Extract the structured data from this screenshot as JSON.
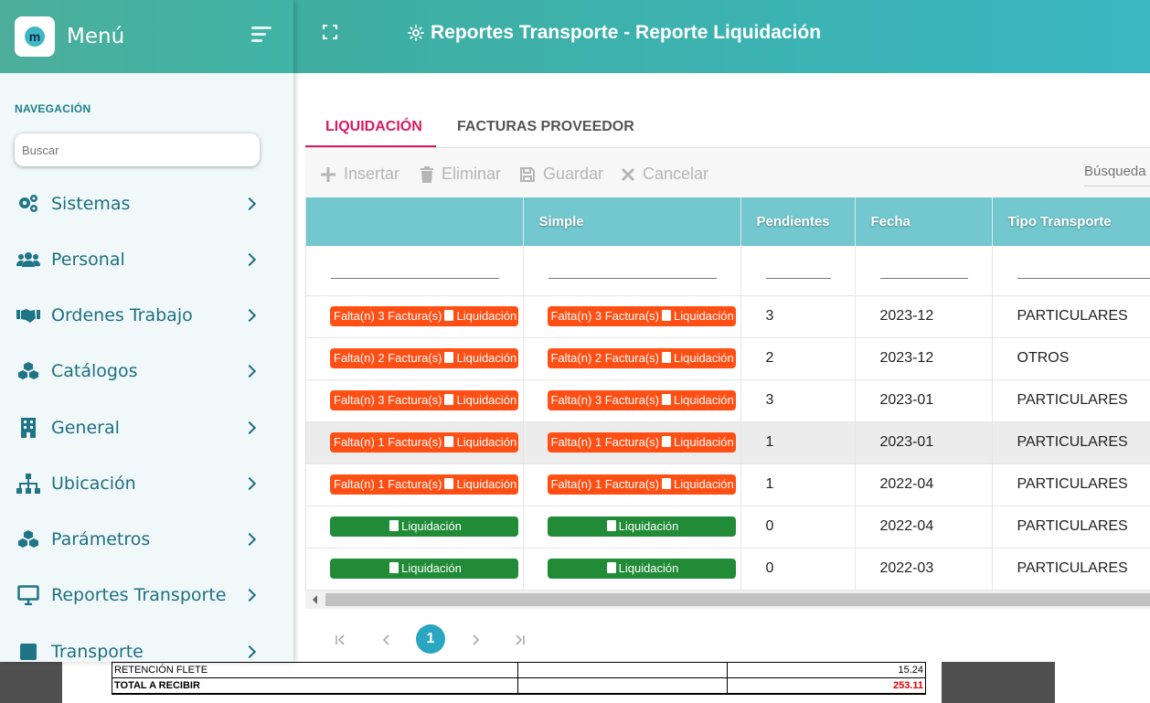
{
  "sidebar": {
    "title": "Menú",
    "logo_letter": "m",
    "nav_label": "NAVEGACIÓN",
    "search_placeholder": "Buscar",
    "items": [
      {
        "label": "Sistemas",
        "icon": "gears-icon"
      },
      {
        "label": "Personal",
        "icon": "users-icon"
      },
      {
        "label": "Ordenes Trabajo",
        "icon": "handshake-icon"
      },
      {
        "label": "Catálogos",
        "icon": "cubes-icon"
      },
      {
        "label": "General",
        "icon": "building-icon"
      },
      {
        "label": "Ubicación",
        "icon": "sitemap-icon"
      },
      {
        "label": "Parámetros",
        "icon": "cubes-icon"
      },
      {
        "label": "Reportes Transporte",
        "icon": "monitor-icon"
      },
      {
        "label": "Transporte",
        "icon": "square-icon"
      }
    ]
  },
  "header": {
    "title": "Reportes Transporte - Reporte Liquidación"
  },
  "tabs": [
    {
      "label": "LIQUIDACIÓN",
      "active": true
    },
    {
      "label": "FACTURAS PROVEEDOR",
      "active": false
    }
  ],
  "toolbar": {
    "insert": "Insertar",
    "delete": "Eliminar",
    "save": "Guardar",
    "cancel": "Cancelar",
    "search_placeholder": "Búsqueda"
  },
  "grid": {
    "columns": [
      "",
      "Simple",
      "Pendientes",
      "Fecha",
      "Tipo Transporte"
    ],
    "rows": [
      {
        "col1": "Falta(n) 3 Factura(s)",
        "col2": "Falta(n) 3 Factura(s)",
        "doc": "Liquidación",
        "status": "red",
        "pendientes": "3",
        "fecha": "2023-12",
        "tipo": "PARTICULARES"
      },
      {
        "col1": "Falta(n) 2 Factura(s)",
        "col2": "Falta(n) 2 Factura(s)",
        "doc": "Liquidación",
        "status": "red",
        "pendientes": "2",
        "fecha": "2023-12",
        "tipo": "OTROS"
      },
      {
        "col1": "Falta(n) 3 Factura(s)",
        "col2": "Falta(n) 3 Factura(s)",
        "doc": "Liquidación",
        "status": "red",
        "pendientes": "3",
        "fecha": "2023-01",
        "tipo": "PARTICULARES"
      },
      {
        "col1": "Falta(n) 1 Factura(s)",
        "col2": "Falta(n) 1 Factura(s)",
        "doc": "Liquidación",
        "status": "red",
        "pendientes": "1",
        "fecha": "2023-01",
        "tipo": "PARTICULARES",
        "selected": true
      },
      {
        "col1": "Falta(n) 1 Factura(s)",
        "col2": "Falta(n) 1 Factura(s)",
        "doc": "Liquidación",
        "status": "red",
        "pendientes": "1",
        "fecha": "2022-04",
        "tipo": "PARTICULARES"
      },
      {
        "col1": "",
        "col2": "",
        "doc": "Liquidación",
        "status": "green",
        "pendientes": "0",
        "fecha": "2022-04",
        "tipo": "PARTICULARES"
      },
      {
        "col1": "",
        "col2": "",
        "doc": "Liquidación",
        "status": "green",
        "pendientes": "0",
        "fecha": "2022-03",
        "tipo": "PARTICULARES"
      }
    ]
  },
  "pager": {
    "current_page": "1"
  },
  "document": {
    "rows": [
      {
        "label": "RETENCIÓN FLETE",
        "value": "15.24"
      },
      {
        "label": "TOTAL A RECIBIR",
        "value": "253.11"
      }
    ]
  },
  "colors": {
    "accent": "#3ab7c2",
    "danger_badge": "#ff4f14",
    "success_badge": "#218b38",
    "active_tab": "#d81b60"
  }
}
